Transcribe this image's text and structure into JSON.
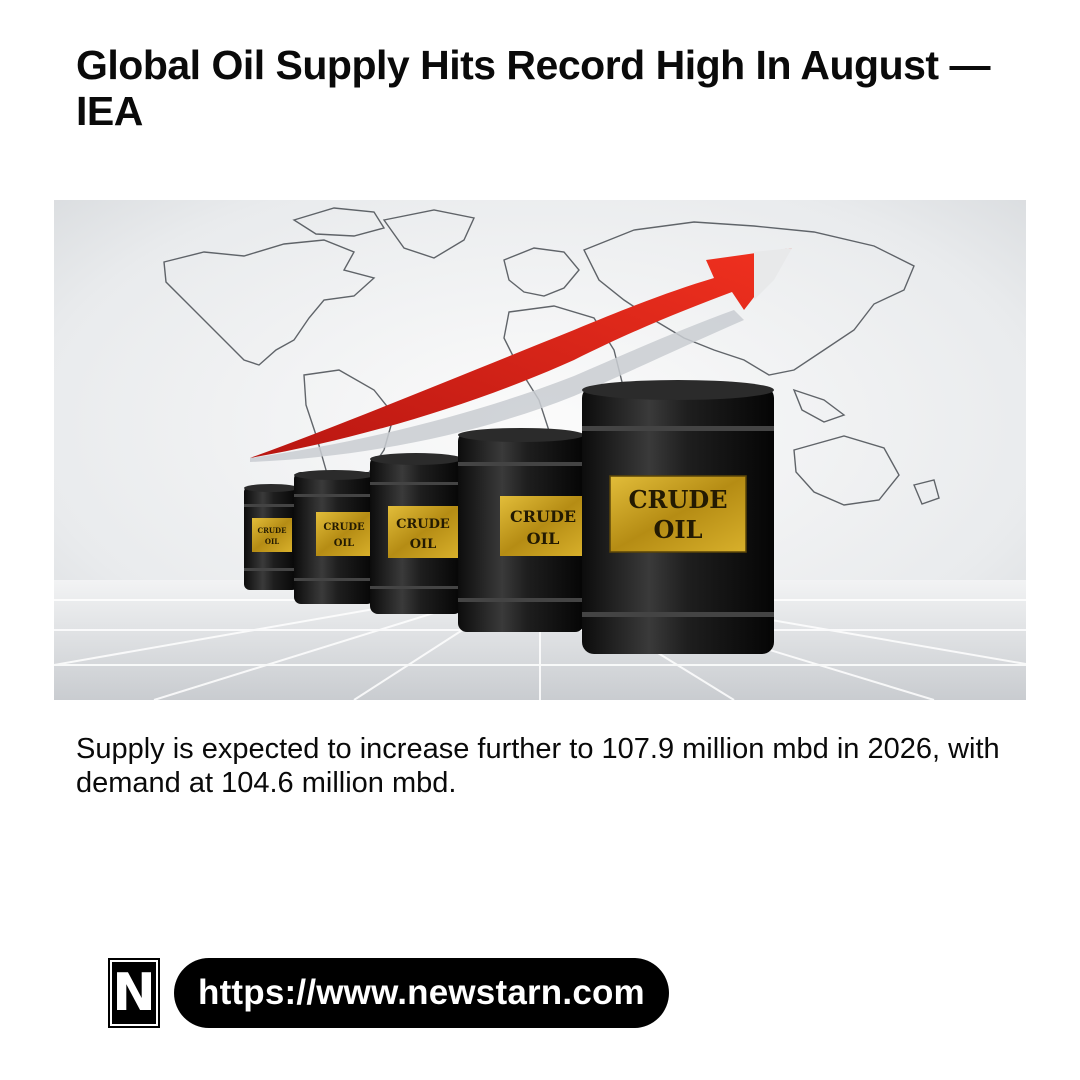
{
  "article": {
    "headline": "Global Oil Supply Hits Record High In August — IEA",
    "summary": "Supply is expected to increase further to 107.9 million mbd in 2026, with demand at 104.6 million mbd."
  },
  "image": {
    "barrel_label_line1": "CRUDE",
    "barrel_label_line2": "OIL",
    "arrow_color": "#e0261b",
    "barrel_color": "#1b1b1b",
    "label_color": "#c9a21f"
  },
  "footer": {
    "logo_letter": "N",
    "url": "https://www.newstarn.com"
  }
}
